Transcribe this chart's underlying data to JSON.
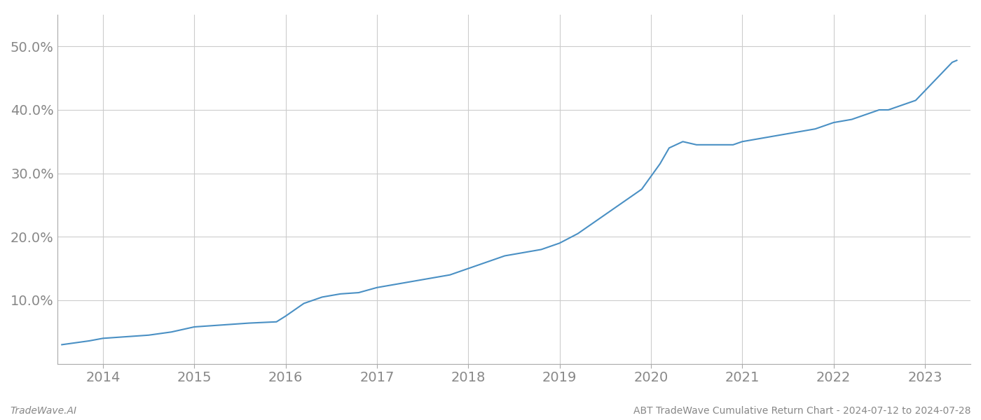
{
  "title": "",
  "footer_left": "TradeWave.AI",
  "footer_right": "ABT TradeWave Cumulative Return Chart - 2024-07-12 to 2024-07-28",
  "line_color": "#4a90c4",
  "background_color": "#ffffff",
  "grid_color": "#cccccc",
  "x_years": [
    2014,
    2015,
    2016,
    2017,
    2018,
    2019,
    2020,
    2021,
    2022,
    2023
  ],
  "x_data": [
    2013.55,
    2013.7,
    2013.85,
    2014.0,
    2014.2,
    2014.5,
    2014.75,
    2015.0,
    2015.2,
    2015.4,
    2015.6,
    2015.75,
    2015.9,
    2016.0,
    2016.2,
    2016.4,
    2016.6,
    2016.8,
    2017.0,
    2017.2,
    2017.4,
    2017.6,
    2017.8,
    2018.0,
    2018.2,
    2018.4,
    2018.6,
    2018.8,
    2019.0,
    2019.2,
    2019.4,
    2019.5,
    2019.6,
    2019.7,
    2019.8,
    2019.9,
    2020.0,
    2020.1,
    2020.2,
    2020.35,
    2020.5,
    2020.7,
    2020.9,
    2021.0,
    2021.2,
    2021.4,
    2021.6,
    2021.8,
    2022.0,
    2022.2,
    2022.4,
    2022.5,
    2022.6,
    2022.7,
    2022.8,
    2022.9,
    2023.0,
    2023.1,
    2023.2,
    2023.3,
    2023.35
  ],
  "y_data": [
    3.0,
    3.3,
    3.6,
    4.0,
    4.2,
    4.5,
    5.0,
    5.8,
    6.0,
    6.2,
    6.4,
    6.5,
    6.6,
    7.5,
    9.5,
    10.5,
    11.0,
    11.2,
    12.0,
    12.5,
    13.0,
    13.5,
    14.0,
    15.0,
    16.0,
    17.0,
    17.5,
    18.0,
    19.0,
    20.5,
    22.5,
    23.5,
    24.5,
    25.5,
    26.5,
    27.5,
    29.5,
    31.5,
    34.0,
    35.0,
    34.5,
    34.5,
    34.5,
    35.0,
    35.5,
    36.0,
    36.5,
    37.0,
    38.0,
    38.5,
    39.5,
    40.0,
    40.0,
    40.5,
    41.0,
    41.5,
    43.0,
    44.5,
    46.0,
    47.5,
    47.8
  ],
  "yticks": [
    10.0,
    20.0,
    30.0,
    40.0,
    50.0
  ],
  "ytick_labels": [
    "10.0%",
    "20.0%",
    "30.0%",
    "40.0%",
    "50.0%"
  ],
  "ylim": [
    0,
    55
  ],
  "xlim": [
    2013.5,
    2023.5
  ],
  "linewidth": 1.5,
  "footer_fontsize": 10,
  "tick_fontsize": 14,
  "tick_color": "#888888",
  "spine_color": "#aaaaaa"
}
